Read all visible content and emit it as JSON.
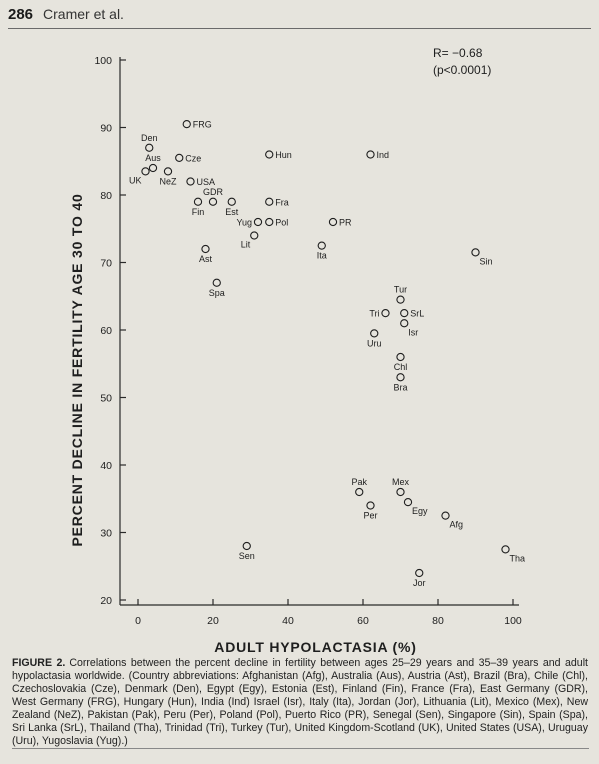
{
  "page": {
    "number": "286",
    "running_head": "Cramer et al."
  },
  "caption": {
    "label": "FIGURE 2.",
    "text": "Correlations between the percent decline in fertility between ages 25–29 years and 35–39 years and adult hypolactasia worldwide. (Country abbreviations: Afghanistan (Afg), Australia (Aus), Austria (Ast), Brazil (Bra), Chile (Chl), Czechoslovakia (Cze), Denmark (Den), Egypt (Egy), Estonia (Est), Finland (Fin), France (Fra), East Germany (GDR), West Germany (FRG), Hungary (Hun), India (Ind) Israel (Isr), Italy (Ita), Jordan (Jor), Lithuania (Lit), Mexico (Mex), New Zealand (NeZ), Pakistan (Pak), Peru (Per), Poland (Pol), Puerto Rico (PR), Senegal (Sen), Singapore (Sin), Spain (Spa), Sri Lanka (SrL), Thailand (Tha), Trinidad (Tri), Turkey (Tur), United Kingdom-Scotland (UK), United States (USA), Uruguay (Uru), Yugoslavia (Yug).)"
  },
  "chart_data": {
    "type": "scatter",
    "xlabel": "ADULT HYPOLACTASIA (%)",
    "ylabel": "PERCENT DECLINE IN FERTILITY AGE 30 TO 40",
    "xlim": [
      0,
      100
    ],
    "ylim": [
      20,
      100
    ],
    "x_ticks": [
      "0",
      "20",
      "40",
      "60",
      "80",
      "100"
    ],
    "y_ticks": [
      "20",
      "30",
      "40",
      "50",
      "60",
      "70",
      "80",
      "90",
      "100"
    ],
    "grid": false,
    "annotation_r": "R= −0.68",
    "annotation_p": "(p<0.0001)",
    "points": [
      {
        "label": "FRG",
        "x": 13,
        "y": 90.5,
        "pos": "right"
      },
      {
        "label": "Den",
        "x": 3,
        "y": 87,
        "pos": "above"
      },
      {
        "label": "Aus",
        "x": 4,
        "y": 84,
        "pos": "above"
      },
      {
        "label": "UK",
        "x": 2,
        "y": 83.5,
        "pos": "below-left"
      },
      {
        "label": "NeZ",
        "x": 8,
        "y": 83.5,
        "pos": "below"
      },
      {
        "label": "Cze",
        "x": 11,
        "y": 85.5,
        "pos": "right"
      },
      {
        "label": "USA",
        "x": 14,
        "y": 82,
        "pos": "right"
      },
      {
        "label": "GDR",
        "x": 20,
        "y": 79,
        "pos": "above"
      },
      {
        "label": "Fin",
        "x": 16,
        "y": 79,
        "pos": "below"
      },
      {
        "label": "Est",
        "x": 25,
        "y": 79,
        "pos": "below"
      },
      {
        "label": "Hun",
        "x": 35,
        "y": 86,
        "pos": "right"
      },
      {
        "label": "Ind",
        "x": 62,
        "y": 86,
        "pos": "right"
      },
      {
        "label": "Fra",
        "x": 35,
        "y": 79,
        "pos": "right"
      },
      {
        "label": "Yug",
        "x": 32,
        "y": 76,
        "pos": "left"
      },
      {
        "label": "Pol",
        "x": 35,
        "y": 76,
        "pos": "right"
      },
      {
        "label": "Lit",
        "x": 31,
        "y": 74,
        "pos": "below-left"
      },
      {
        "label": "PR",
        "x": 52,
        "y": 76,
        "pos": "right"
      },
      {
        "label": "Ita",
        "x": 49,
        "y": 72.5,
        "pos": "below"
      },
      {
        "label": "Ast",
        "x": 18,
        "y": 72,
        "pos": "below"
      },
      {
        "label": "Spa",
        "x": 21,
        "y": 67,
        "pos": "below"
      },
      {
        "label": "Sin",
        "x": 90,
        "y": 71.5,
        "pos": "below-right"
      },
      {
        "label": "Tur",
        "x": 70,
        "y": 64.5,
        "pos": "above"
      },
      {
        "label": "Tri",
        "x": 66,
        "y": 62.5,
        "pos": "left"
      },
      {
        "label": "SrL",
        "x": 71,
        "y": 62.5,
        "pos": "right"
      },
      {
        "label": "Isr",
        "x": 71,
        "y": 61,
        "pos": "below-right"
      },
      {
        "label": "Uru",
        "x": 63,
        "y": 59.5,
        "pos": "below"
      },
      {
        "label": "Chl",
        "x": 70,
        "y": 56,
        "pos": "below"
      },
      {
        "label": "Bra",
        "x": 70,
        "y": 53,
        "pos": "below"
      },
      {
        "label": "Pak",
        "x": 59,
        "y": 36,
        "pos": "above"
      },
      {
        "label": "Mex",
        "x": 70,
        "y": 36,
        "pos": "above"
      },
      {
        "label": "Per",
        "x": 62,
        "y": 34,
        "pos": "below"
      },
      {
        "label": "Egy",
        "x": 72,
        "y": 34.5,
        "pos": "below-right"
      },
      {
        "label": "Afg",
        "x": 82,
        "y": 32.5,
        "pos": "below-right"
      },
      {
        "label": "Sen",
        "x": 29,
        "y": 28,
        "pos": "below"
      },
      {
        "label": "Tha",
        "x": 98,
        "y": 27.5,
        "pos": "below-right"
      },
      {
        "label": "Jor",
        "x": 75,
        "y": 24,
        "pos": "below"
      }
    ]
  }
}
